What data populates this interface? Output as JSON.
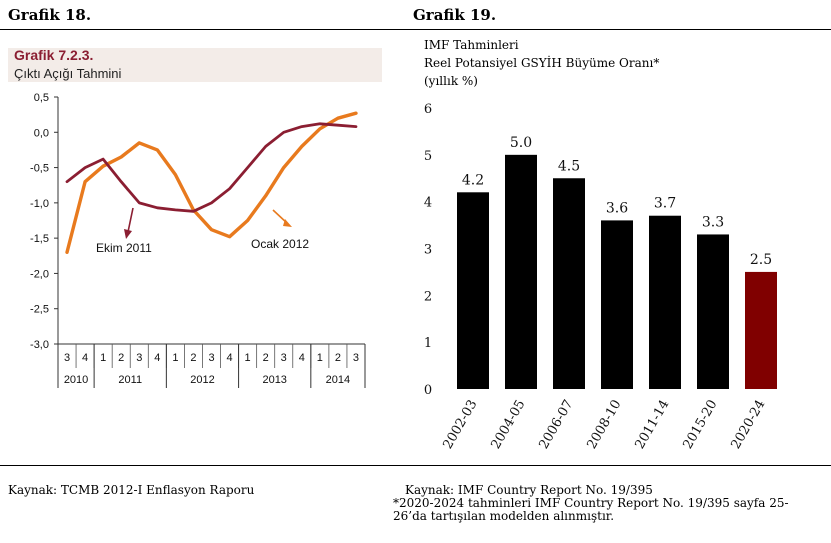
{
  "headings": {
    "left": "Grafik 18.",
    "right": "Grafik 19."
  },
  "sources": {
    "left": "Kaynak: TCMB 2012-I Enflasyon Raporu",
    "right_line1": "Kaynak: IMF Country Report No. 19/395",
    "right_line2": "*2020-2024 tahminleri IMF Country Report No. 19/395 sayfa 25-",
    "right_line3": "26’da tartışılan modelden alınmıştır."
  },
  "chart_data": [
    {
      "type": "line",
      "title": "Grafik 7.2.3.",
      "subtitle": "Çıktı Açığı Tahmini",
      "ylim": [
        -3.0,
        0.5
      ],
      "yticks": [
        "0,5",
        "0,0",
        "-0,5",
        "-1,0",
        "-1,5",
        "-2,0",
        "-2,5",
        "-3,0"
      ],
      "quarters": [
        "3",
        "4",
        "1",
        "2",
        "3",
        "4",
        "1",
        "2",
        "3",
        "4",
        "1",
        "2",
        "3",
        "4",
        "1",
        "2",
        "3"
      ],
      "years": [
        {
          "label": "2010",
          "start": 0,
          "end": 1
        },
        {
          "label": "2011",
          "start": 2,
          "end": 5
        },
        {
          "label": "2012",
          "start": 6,
          "end": 9
        },
        {
          "label": "2013",
          "start": 10,
          "end": 13
        },
        {
          "label": "2014",
          "start": 14,
          "end": 16
        }
      ],
      "series": [
        {
          "name": "Ekim 2011",
          "color": "#8B1E32",
          "values": [
            -0.7,
            -0.5,
            -0.38,
            -0.7,
            -1.0,
            -1.07,
            -1.1,
            -1.12,
            -1.0,
            -0.8,
            -0.5,
            -0.2,
            0.0,
            0.08,
            0.12,
            0.1,
            0.08
          ]
        },
        {
          "name": "Ocak 2012",
          "color": "#E87A1E",
          "values": [
            -1.7,
            -0.7,
            -0.48,
            -0.35,
            -0.15,
            -0.25,
            -0.6,
            -1.1,
            -1.38,
            -1.48,
            -1.25,
            -0.9,
            -0.5,
            -0.2,
            0.05,
            0.2,
            0.27
          ]
        }
      ],
      "annotations": [
        {
          "text": "Ekim 2011",
          "series": "Ekim 2011"
        },
        {
          "text": "Ocak 2012",
          "series": "Ocak 2012"
        }
      ],
      "grid": false
    },
    {
      "type": "bar",
      "title_line1": "IMF Tahminleri",
      "title_line2": "Reel Potansiyel GSYİH Büyüme Oranı*",
      "title_line3": "(yıllık %)",
      "categories": [
        "2002-03",
        "2004-05",
        "2006-07",
        "2008-10",
        "2011-14",
        "2015-20",
        "2020-24"
      ],
      "values": [
        4.2,
        5.0,
        4.5,
        3.6,
        3.7,
        3.3,
        2.5
      ],
      "data_labels": [
        "4.2",
        "5.0",
        "4.5",
        "3.6",
        "3.7",
        "3.3",
        "2.5"
      ],
      "colors": [
        "#000000",
        "#000000",
        "#000000",
        "#000000",
        "#000000",
        "#000000",
        "#800000"
      ],
      "ylim": [
        0,
        6
      ],
      "yticks": [
        "0",
        "1",
        "2",
        "3",
        "4",
        "5",
        "6"
      ],
      "grid": false
    }
  ]
}
